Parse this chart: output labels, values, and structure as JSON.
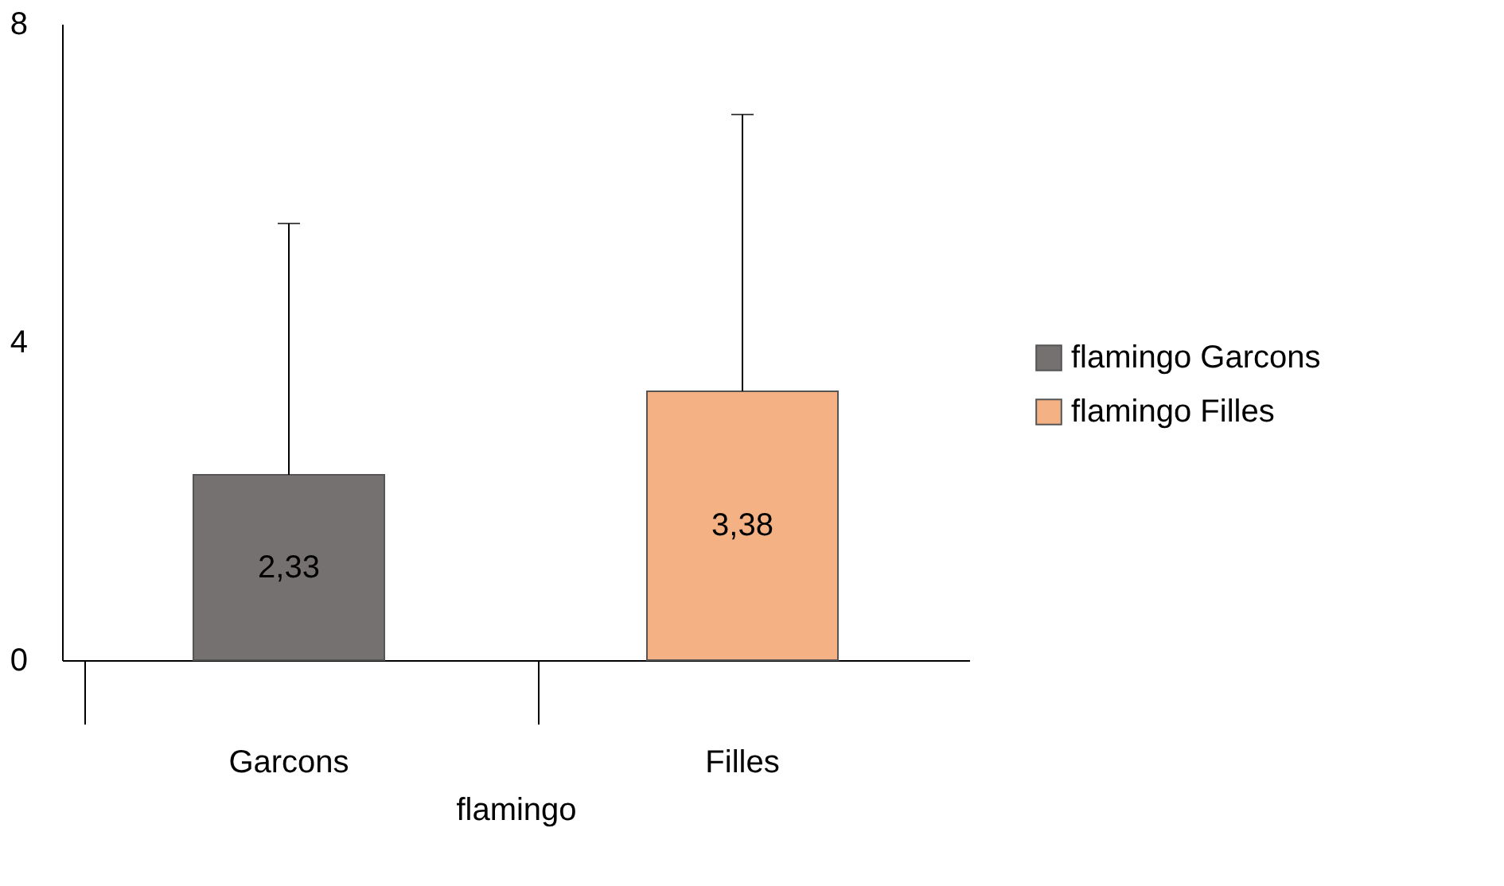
{
  "chart_data": {
    "type": "bar",
    "categories": [
      "Garcons",
      "Filles"
    ],
    "xlabel": "flamingo",
    "series": [
      {
        "name": "flamingo Garcons",
        "color": "#767171",
        "values": [
          2.33,
          null
        ],
        "errors": [
          [
            2.33,
            5.49
          ],
          null
        ],
        "value_labels": [
          "2,33",
          null
        ]
      },
      {
        "name": "flamingo Filles",
        "color": "#f4b183",
        "values": [
          null,
          3.38
        ],
        "errors": [
          null,
          [
            3.38,
            6.86
          ]
        ],
        "value_labels": [
          null,
          "3,38"
        ]
      }
    ],
    "ylim": [
      0,
      8
    ],
    "yticks": [
      0,
      4,
      8
    ],
    "grid": false,
    "legend": "right"
  }
}
